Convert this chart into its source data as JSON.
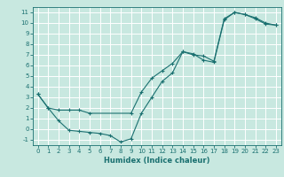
{
  "title": "",
  "xlabel": "Humidex (Indice chaleur)",
  "bg_color": "#c8e8e0",
  "line_color": "#1a7070",
  "grid_color": "#ffffff",
  "xlim": [
    -0.5,
    23.5
  ],
  "ylim": [
    -1.5,
    11.5
  ],
  "xticks": [
    0,
    1,
    2,
    3,
    4,
    5,
    6,
    7,
    8,
    9,
    10,
    11,
    12,
    13,
    14,
    15,
    16,
    17,
    18,
    19,
    20,
    21,
    22,
    23
  ],
  "yticks": [
    -1,
    0,
    1,
    2,
    3,
    4,
    5,
    6,
    7,
    8,
    9,
    10,
    11
  ],
  "series": [
    {
      "x": [
        0,
        1,
        2,
        3,
        4,
        5,
        6,
        7,
        8,
        9,
        10,
        11,
        12,
        13,
        14,
        15,
        16,
        17,
        18,
        19,
        20,
        21,
        22,
        23
      ],
      "y": [
        3.3,
        2.0,
        0.8,
        -0.1,
        -0.2,
        -0.3,
        -0.4,
        -0.6,
        -1.2,
        -0.9,
        1.5,
        3.0,
        4.5,
        5.3,
        7.3,
        7.1,
        6.5,
        6.3,
        10.3,
        11.0,
        10.8,
        10.5,
        10.0,
        9.8
      ]
    },
    {
      "x": [
        0,
        1,
        2,
        3,
        4,
        5,
        9,
        10,
        11,
        12,
        13,
        14,
        15,
        16,
        17,
        18,
        19,
        20,
        21,
        22,
        23
      ],
      "y": [
        3.3,
        2.0,
        1.8,
        1.8,
        1.8,
        1.5,
        1.5,
        3.5,
        4.8,
        5.5,
        6.2,
        7.3,
        7.0,
        6.9,
        6.4,
        10.4,
        11.0,
        10.8,
        10.4,
        9.9,
        9.8
      ]
    }
  ]
}
